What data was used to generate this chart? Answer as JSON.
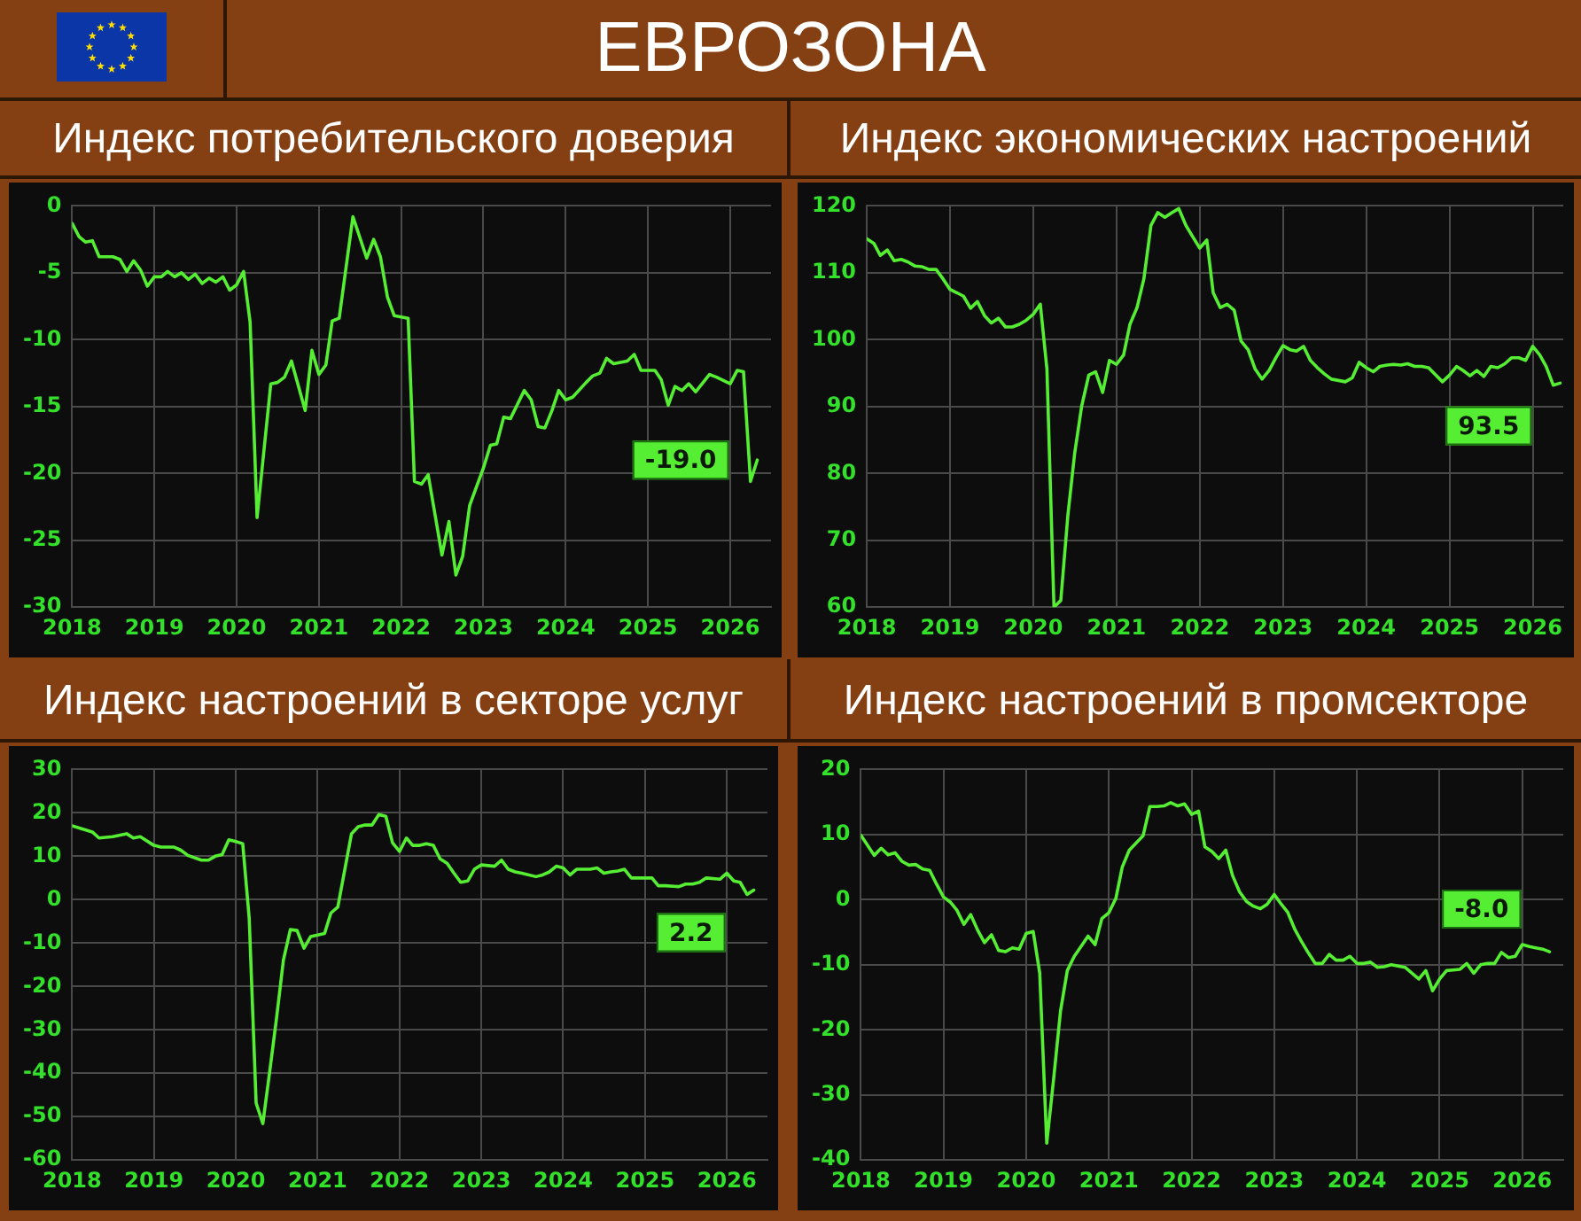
{
  "chart_data": [
    {
      "type": "other",
      "title": "ЕВРОЗОНА"
    },
    {
      "type": "line",
      "title": "Индекс потребительского доверия",
      "x": [
        "2018-01",
        "2018-02",
        "2018-03",
        "2018-04",
        "2018-05",
        "2018-07",
        "2018-08",
        "2018-09",
        "2018-10",
        "2018-11",
        "2018-12",
        "2019-01",
        "2019-02",
        "2019-03",
        "2019-04",
        "2019-05",
        "2019-06",
        "2019-07",
        "2019-08",
        "2019-09",
        "2019-10",
        "2019-11",
        "2019-12",
        "2020-01",
        "2020-02",
        "2020-03",
        "2020-04",
        "2020-06",
        "2020-07",
        "2020-08",
        "2020-09",
        "2020-11",
        "2020-12",
        "2021-01",
        "2021-02",
        "2021-03",
        "2021-04",
        "2021-06",
        "2021-08",
        "2021-09",
        "2021-10",
        "2021-11",
        "2021-12",
        "2022-02",
        "2022-03",
        "2022-04",
        "2022-05",
        "2022-07",
        "2022-08",
        "2022-09",
        "2022-10",
        "2022-11",
        "2023-01",
        "2023-02",
        "2023-03",
        "2023-04",
        "2023-05",
        "2023-07",
        "2023-08",
        "2023-09",
        "2023-10",
        "2023-11",
        "2023-12",
        "2024-01",
        "2024-02",
        "2024-04",
        "2024-05",
        "2024-06",
        "2024-07",
        "2024-08",
        "2024-10",
        "2024-11",
        "2024-12",
        "2025-01",
        "2025-02",
        "2025-03",
        "2025-04",
        "2025-05",
        "2025-06",
        "2025-07",
        "2025-08",
        "2025-10",
        "2025-11",
        "2026-01",
        "2026-02",
        "2026-03",
        "2026-04",
        "2026-05"
      ],
      "values": [
        -1.3,
        -2.3,
        -2.7,
        -2.6,
        -3.8,
        -3.8,
        -4.0,
        -4.9,
        -4.1,
        -4.8,
        -6.0,
        -5.3,
        -5.3,
        -4.9,
        -5.3,
        -5.0,
        -5.5,
        -5.1,
        -5.8,
        -5.4,
        -5.7,
        -5.3,
        -6.3,
        -5.9,
        -4.9,
        -8.7,
        -23.3,
        -13.3,
        -13.2,
        -12.8,
        -11.6,
        -15.3,
        -10.8,
        -12.6,
        -11.9,
        -8.6,
        -8.4,
        -0.8,
        -3.9,
        -2.5,
        -3.8,
        -6.8,
        -8.2,
        -8.4,
        -20.6,
        -20.8,
        -20.1,
        -26.1,
        -23.6,
        -27.6,
        -26.2,
        -22.4,
        -19.6,
        -17.9,
        -17.8,
        -15.8,
        -15.9,
        -13.8,
        -14.5,
        -16.5,
        -16.6,
        -15.3,
        -13.8,
        -14.5,
        -14.3,
        -13.2,
        -12.7,
        -12.5,
        -11.4,
        -11.8,
        -11.6,
        -11.1,
        -12.3,
        -12.3,
        -12.3,
        -13.0,
        -14.9,
        -13.5,
        -13.8,
        -13.3,
        -13.9,
        -12.6,
        -12.8,
        -13.3,
        -12.3,
        -12.4,
        -20.6,
        -19.0
      ],
      "color": "#55ee33",
      "xlim": [
        "2018",
        "2026-07"
      ],
      "xticks": [
        "2018",
        "2019",
        "2020",
        "2021",
        "2022",
        "2023",
        "2024",
        "2025",
        "2026"
      ],
      "ylim": [
        -30,
        0
      ],
      "yticks": [
        -30,
        -25,
        -20,
        -15,
        -10,
        -5,
        0
      ],
      "grid": true,
      "marker": "none",
      "annotations": [
        {
          "text": "-19.0",
          "x": "2026-05",
          "y": -19.0
        }
      ]
    },
    {
      "type": "line",
      "title": "Индекс экономических настроений",
      "x": [
        "2018-01",
        "2018-02",
        "2018-03",
        "2018-04",
        "2018-05",
        "2018-06",
        "2018-07",
        "2018-08",
        "2018-09",
        "2018-10",
        "2018-11",
        "2018-12",
        "2019-01",
        "2019-02",
        "2019-03",
        "2019-04",
        "2019-05",
        "2019-06",
        "2019-07",
        "2019-08",
        "2019-09",
        "2019-10",
        "2019-11",
        "2019-12",
        "2020-01",
        "2020-02",
        "2020-03",
        "2020-04",
        "2020-05",
        "2020-06",
        "2020-07",
        "2020-08",
        "2020-09",
        "2020-10",
        "2020-11",
        "2020-12",
        "2021-01",
        "2021-02",
        "2021-03",
        "2021-04",
        "2021-05",
        "2021-06",
        "2021-07",
        "2021-08",
        "2021-09",
        "2021-10",
        "2021-11",
        "2021-12",
        "2022-01",
        "2022-02",
        "2022-03",
        "2022-04",
        "2022-05",
        "2022-06",
        "2022-07",
        "2022-08",
        "2022-09",
        "2022-10",
        "2022-11",
        "2022-12",
        "2023-01",
        "2023-02",
        "2023-03",
        "2023-04",
        "2023-05",
        "2023-06",
        "2023-07",
        "2023-08",
        "2023-09",
        "2023-10",
        "2023-11",
        "2023-12",
        "2024-01",
        "2024-02",
        "2024-03",
        "2024-04",
        "2024-05",
        "2024-06",
        "2024-07",
        "2024-08",
        "2024-09",
        "2024-10",
        "2024-12",
        "2025-01",
        "2025-02",
        "2025-03",
        "2025-04",
        "2025-05",
        "2025-06",
        "2025-07",
        "2025-08",
        "2025-09",
        "2025-10",
        "2025-11",
        "2025-12",
        "2026-01",
        "2026-02",
        "2026-03",
        "2026-04",
        "2026-05"
      ],
      "values": [
        115.1,
        114.4,
        112.6,
        113.4,
        111.8,
        112.0,
        111.6,
        111.0,
        110.9,
        110.5,
        110.5,
        109.1,
        107.5,
        107.0,
        106.5,
        104.7,
        105.7,
        103.6,
        102.5,
        103.2,
        101.9,
        101.9,
        102.3,
        102.9,
        103.8,
        105.3,
        95.6,
        60.0,
        61.0,
        73.7,
        83.0,
        90.1,
        94.7,
        95.2,
        92.1,
        96.9,
        96.3,
        97.7,
        102.3,
        104.8,
        109.1,
        117.1,
        119.0,
        118.3,
        119.0,
        119.6,
        117.1,
        115.4,
        113.7,
        114.9,
        107.0,
        104.8,
        105.3,
        104.4,
        99.8,
        98.5,
        95.6,
        94.1,
        95.4,
        97.3,
        99.1,
        98.5,
        98.3,
        99.0,
        96.9,
        95.8,
        94.9,
        94.1,
        93.9,
        93.7,
        94.3,
        96.6,
        95.8,
        95.2,
        96.0,
        96.2,
        96.3,
        96.2,
        96.4,
        96.0,
        96.0,
        95.8,
        93.7,
        94.7,
        96.0,
        95.4,
        94.6,
        95.4,
        94.5,
        96.0,
        95.8,
        96.4,
        97.3,
        97.3,
        96.9,
        99.0,
        97.7,
        96.0,
        93.2,
        93.5
      ],
      "color": "#55ee33",
      "xlim": [
        "2018",
        "2026-05-15"
      ],
      "xticks": [
        "2018",
        "2019",
        "2020",
        "2021",
        "2022",
        "2023",
        "2024",
        "2025",
        "2026"
      ],
      "ylim": [
        60,
        120
      ],
      "yticks": [
        60,
        70,
        80,
        90,
        100,
        110,
        120
      ],
      "grid": true,
      "marker": "none",
      "annotations": [
        {
          "text": "93.5",
          "x": "2026-05",
          "y": 93.5
        }
      ]
    },
    {
      "type": "line",
      "title": "Индекс настроений в секторе услуг",
      "x": [
        "2018-01",
        "2018-04",
        "2018-05",
        "2018-07",
        "2018-09",
        "2018-10",
        "2018-11",
        "2019-01",
        "2019-02",
        "2019-04",
        "2019-05",
        "2019-06",
        "2019-08",
        "2019-09",
        "2019-10",
        "2019-11",
        "2019-12",
        "2020-01",
        "2020-02",
        "2020-03",
        "2020-04",
        "2020-05",
        "2020-06",
        "2020-07",
        "2020-08",
        "2020-09",
        "2020-10",
        "2020-11",
        "2020-12",
        "2021-02",
        "2021-03",
        "2021-04",
        "2021-06",
        "2021-07",
        "2021-08",
        "2021-09",
        "2021-10",
        "2021-11",
        "2021-12",
        "2022-01",
        "2022-02",
        "2022-03",
        "2022-04",
        "2022-05",
        "2022-06",
        "2022-07",
        "2022-08",
        "2022-09",
        "2022-10",
        "2022-11",
        "2022-12",
        "2023-01",
        "2023-03",
        "2023-04",
        "2023-05",
        "2023-06",
        "2023-07",
        "2023-09",
        "2023-10",
        "2023-11",
        "2023-12",
        "2024-01",
        "2024-02",
        "2024-03",
        "2024-05",
        "2024-06",
        "2024-07",
        "2024-08",
        "2024-09",
        "2024-10",
        "2024-11",
        "2024-12",
        "2025-02",
        "2025-03",
        "2025-04",
        "2025-06",
        "2025-07",
        "2025-08",
        "2025-09",
        "2025-10",
        "2025-12",
        "2026-01",
        "2026-02",
        "2026-03",
        "2026-04",
        "2026-05"
      ],
      "values": [
        17.0,
        15.6,
        14.2,
        14.5,
        15.2,
        14.2,
        14.5,
        12.5,
        12.1,
        12.1,
        11.4,
        10.2,
        9.1,
        9.1,
        10.0,
        10.4,
        13.8,
        13.4,
        12.9,
        -4.3,
        -46.9,
        -51.6,
        -39.5,
        -27.4,
        -13.9,
        -6.9,
        -7.1,
        -11.2,
        -8.5,
        -7.8,
        -3.1,
        -1.7,
        15.2,
        16.8,
        17.2,
        17.2,
        19.6,
        19.2,
        13.1,
        11.1,
        14.2,
        12.5,
        12.5,
        12.9,
        12.5,
        9.4,
        8.4,
        6.1,
        4.0,
        4.3,
        7.0,
        8.0,
        7.7,
        9.1,
        7.0,
        6.4,
        6.1,
        5.3,
        5.7,
        6.4,
        7.7,
        7.3,
        5.7,
        7.0,
        7.0,
        7.3,
        6.1,
        6.4,
        6.6,
        7.0,
        5.0,
        5.0,
        5.0,
        3.2,
        3.2,
        3.0,
        3.6,
        3.6,
        4.0,
        5.0,
        4.7,
        6.1,
        4.3,
        4.0,
        1.2,
        2.2
      ],
      "color": "#55ee33",
      "xlim": [
        "2018",
        "2026-07"
      ],
      "xticks": [
        "2018",
        "2019",
        "2020",
        "2021",
        "2022",
        "2023",
        "2024",
        "2025",
        "2026"
      ],
      "ylim": [
        -60,
        30
      ],
      "yticks": [
        -60,
        -50,
        -40,
        -30,
        -20,
        -10,
        0,
        10,
        20,
        30
      ],
      "grid": true,
      "marker": "none",
      "annotations": [
        {
          "text": "2.2",
          "x": "2026-05",
          "y": 2.2
        }
      ]
    },
    {
      "type": "line",
      "title": "Индекс настроений в промсекторе",
      "x": [
        "2018-01",
        "2018-03",
        "2018-04",
        "2018-05",
        "2018-06",
        "2018-07",
        "2018-08",
        "2018-09",
        "2018-10",
        "2018-11",
        "2018-12",
        "2019-01",
        "2019-02",
        "2019-03",
        "2019-04",
        "2019-05",
        "2019-06",
        "2019-07",
        "2019-08",
        "2019-09",
        "2019-10",
        "2019-11",
        "2019-12",
        "2020-01",
        "2020-02",
        "2020-03",
        "2020-04",
        "2020-05",
        "2020-06",
        "2020-07",
        "2020-08",
        "2020-10",
        "2020-11",
        "2020-12",
        "2021-01",
        "2021-02",
        "2021-03",
        "2021-04",
        "2021-06",
        "2021-07",
        "2021-08",
        "2021-09",
        "2021-10",
        "2021-11",
        "2021-12",
        "2022-01",
        "2022-02",
        "2022-03",
        "2022-04",
        "2022-05",
        "2022-06",
        "2022-07",
        "2022-08",
        "2022-09",
        "2022-10",
        "2022-11",
        "2022-12",
        "2023-01",
        "2023-02",
        "2023-03",
        "2023-04",
        "2023-05",
        "2023-06",
        "2023-07",
        "2023-08",
        "2023-09",
        "2023-10",
        "2023-11",
        "2023-12",
        "2024-01",
        "2024-02",
        "2024-03",
        "2024-04",
        "2024-05",
        "2024-06",
        "2024-07",
        "2024-08",
        "2024-09",
        "2024-10",
        "2024-11",
        "2024-12",
        "2025-01",
        "2025-02",
        "2025-03",
        "2025-04",
        "2025-05",
        "2025-06",
        "2025-07",
        "2025-08",
        "2025-09",
        "2025-10",
        "2025-11",
        "2025-12",
        "2026-01",
        "2026-02",
        "2026-03",
        "2026-04",
        "2026-05"
      ],
      "values": [
        9.9,
        6.8,
        7.9,
        6.9,
        7.2,
        5.9,
        5.3,
        5.4,
        4.7,
        4.5,
        2.4,
        0.4,
        -0.4,
        -1.6,
        -3.8,
        -2.3,
        -4.7,
        -6.6,
        -5.4,
        -7.8,
        -8.0,
        -7.4,
        -7.6,
        -5.2,
        -4.9,
        -11.3,
        -37.4,
        -27.7,
        -17.1,
        -10.9,
        -8.7,
        -5.6,
        -6.9,
        -2.9,
        -2.0,
        0.2,
        5.0,
        7.6,
        9.8,
        14.3,
        14.3,
        14.4,
        14.9,
        14.4,
        14.7,
        13.1,
        13.6,
        8.1,
        7.4,
        6.3,
        7.6,
        3.7,
        1.2,
        -0.3,
        -1.0,
        -1.4,
        -0.7,
        0.8,
        -0.7,
        -1.9,
        -4.5,
        -6.4,
        -8.2,
        -9.8,
        -9.8,
        -8.4,
        -9.3,
        -9.3,
        -8.7,
        -9.8,
        -9.8,
        -9.6,
        -10.4,
        -10.3,
        -10.0,
        -10.2,
        -10.4,
        -11.3,
        -12.2,
        -10.9,
        -14.0,
        -12.2,
        -10.9,
        -10.8,
        -10.7,
        -9.8,
        -11.3,
        -10.0,
        -9.8,
        -9.8,
        -8.1,
        -8.9,
        -8.7,
        -6.9,
        -7.2,
        -7.4,
        -7.6,
        -8.0
      ],
      "color": "#55ee33",
      "xlim": [
        "2018",
        "2026-07"
      ],
      "xticks": [
        "2018",
        "2019",
        "2020",
        "2021",
        "2022",
        "2023",
        "2024",
        "2025",
        "2026"
      ],
      "ylim": [
        -40,
        20
      ],
      "yticks": [
        -40,
        -30,
        -20,
        -10,
        0,
        10,
        20
      ],
      "grid": true,
      "marker": "none",
      "annotations": [
        {
          "text": "-8.0",
          "x": "2026-05",
          "y": -8.0
        }
      ]
    }
  ]
}
